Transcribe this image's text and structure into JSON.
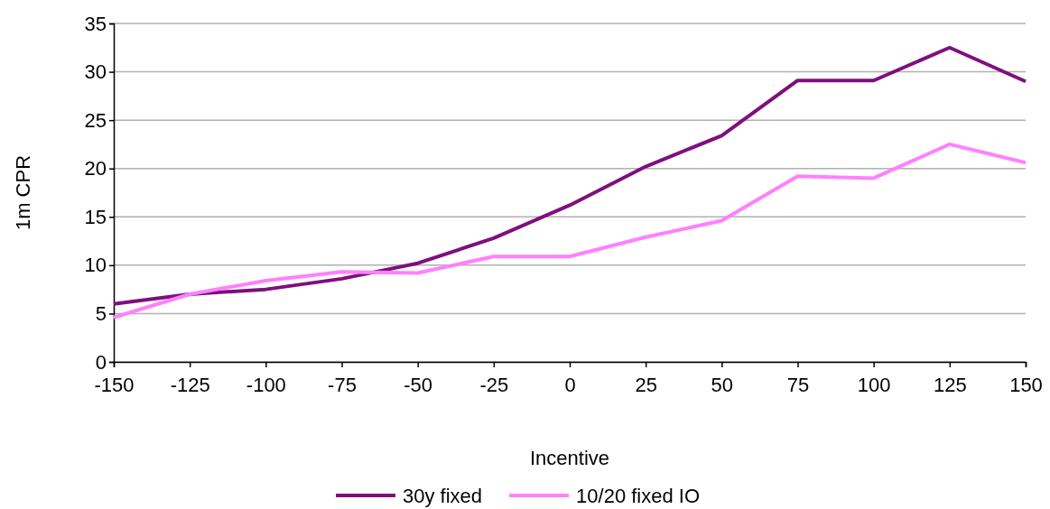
{
  "chart_data": {
    "type": "line",
    "xlabel": "Incentive",
    "ylabel": "1m CPR",
    "x": [
      -150,
      -125,
      -100,
      -75,
      -50,
      -25,
      0,
      25,
      50,
      75,
      100,
      125,
      150
    ],
    "xlim": [
      -150,
      150
    ],
    "xticks": [
      -150,
      -125,
      -100,
      -75,
      -50,
      -25,
      0,
      25,
      50,
      75,
      100,
      125,
      150
    ],
    "ylim": [
      0,
      35
    ],
    "yticks": [
      0,
      5,
      10,
      15,
      20,
      25,
      30,
      35
    ],
    "grid": "y",
    "legend": "bottom",
    "marker": "none",
    "line_style": "solid",
    "series": [
      {
        "name": "30y fixed",
        "color": "#7f0f7e",
        "values": [
          6.0,
          7.0,
          7.5,
          8.6,
          10.2,
          12.8,
          16.2,
          20.2,
          23.4,
          29.1,
          29.1,
          32.5,
          29.0
        ]
      },
      {
        "name": "10/20 fixed IO",
        "color": "#ff80ff",
        "values": [
          4.6,
          7.0,
          8.4,
          9.3,
          9.2,
          10.9,
          10.9,
          12.9,
          14.6,
          19.2,
          19.0,
          22.5,
          20.6
        ]
      }
    ]
  }
}
